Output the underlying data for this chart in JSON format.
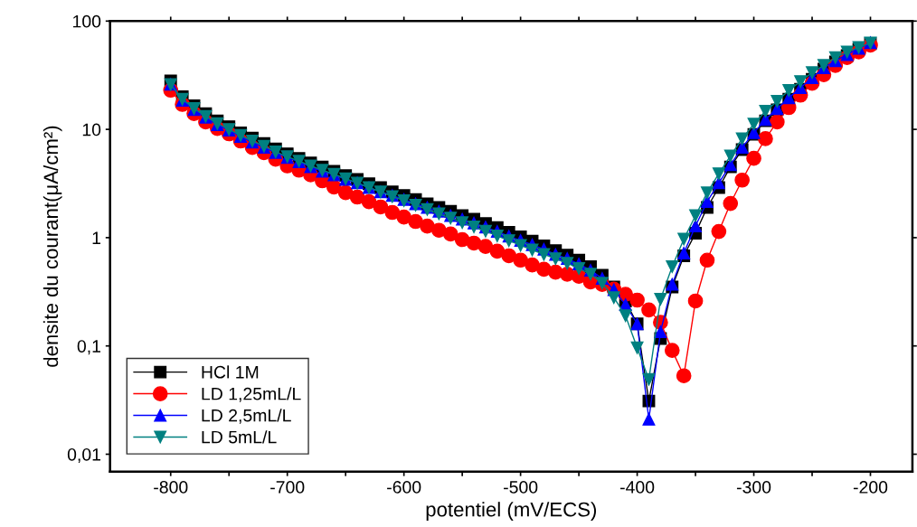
{
  "chart_data": {
    "type": "line",
    "xlabel": "potentiel (mV/ECS)",
    "ylabel": "densite du courant(μA/cm²)",
    "log": "y",
    "grid": false,
    "legend": "bottom left",
    "line_style": "solid",
    "x": [
      -800,
      -790,
      -780,
      -770,
      -760,
      -750,
      -740,
      -730,
      -720,
      -710,
      -700,
      -690,
      -680,
      -670,
      -660,
      -650,
      -640,
      -630,
      -620,
      -610,
      -600,
      -590,
      -580,
      -570,
      -560,
      -550,
      -540,
      -530,
      -520,
      -510,
      -500,
      -490,
      -480,
      -470,
      -460,
      -450,
      -440,
      -430,
      -420,
      -410,
      -400,
      -390,
      -380,
      -370,
      -360,
      -350,
      -340,
      -330,
      -320,
      -310,
      -300,
      -290,
      -280,
      -270,
      -260,
      -250,
      -240,
      -230,
      -220,
      -210,
      -200
    ],
    "xlim": [
      -852,
      -164
    ],
    "ylim": [
      0.0069,
      100
    ],
    "xticks": [
      -800,
      {
        "value": -750,
        "label": null
      },
      -700,
      {
        "value": -650,
        "label": null
      },
      -600,
      {
        "value": -550,
        "label": null
      },
      -500,
      {
        "value": -450,
        "label": null
      },
      -400,
      {
        "value": -350,
        "label": null
      },
      -300,
      {
        "value": -250,
        "label": null
      },
      -200
    ],
    "yticks": [
      {
        "value": 0.01,
        "label": "0,01"
      },
      {
        "value": 0.1,
        "label": "0,1"
      },
      1,
      10,
      100
    ],
    "series": [
      {
        "name": "HCl 1M",
        "color": "#000000",
        "marker": "square",
        "values": [
          28,
          20,
          16.5,
          14,
          12,
          10.6,
          9.3,
          8.3,
          7.4,
          6.6,
          5.95,
          5.4,
          4.9,
          4.5,
          4.1,
          3.75,
          3.45,
          3.15,
          2.9,
          2.65,
          2.45,
          2.25,
          2.05,
          1.9,
          1.75,
          1.6,
          1.48,
          1.35,
          1.24,
          1.12,
          1.02,
          0.93,
          0.84,
          0.76,
          0.69,
          0.62,
          0.54,
          0.45,
          0.35,
          0.26,
          0.16,
          0.031,
          0.117,
          0.35,
          0.68,
          1.1,
          1.9,
          2.9,
          4.5,
          6.5,
          9.0,
          12.0,
          15.2,
          19,
          23.5,
          29,
          36,
          42,
          48,
          55,
          62
        ]
      },
      {
        "name": "LD 1,25mL/L",
        "color": "#ff0000",
        "marker": "circle",
        "values": [
          23,
          17,
          14,
          11.7,
          10.2,
          9.1,
          7.8,
          6.8,
          6.1,
          5.3,
          4.6,
          4.2,
          3.8,
          3.35,
          2.93,
          2.6,
          2.37,
          2.15,
          1.92,
          1.71,
          1.55,
          1.41,
          1.28,
          1.17,
          1.08,
          0.96,
          0.89,
          0.83,
          0.75,
          0.68,
          0.62,
          0.56,
          0.51,
          0.48,
          0.46,
          0.44,
          0.39,
          0.37,
          0.335,
          0.3,
          0.265,
          0.215,
          0.165,
          0.091,
          0.053,
          0.26,
          0.62,
          1.14,
          2.07,
          3.4,
          5.4,
          8.2,
          11.7,
          15.9,
          20.7,
          26.6,
          32,
          39,
          46,
          52,
          60
        ]
      },
      {
        "name": "LD 2,5mL/L",
        "color": "#0000ff",
        "marker": "triangle",
        "values": [
          26,
          18.5,
          15.2,
          12.9,
          11,
          9.8,
          8.6,
          7.6,
          6.8,
          6.1,
          5.5,
          5.0,
          4.5,
          4.1,
          3.8,
          3.45,
          3.2,
          2.9,
          2.65,
          2.45,
          2.25,
          2.05,
          1.9,
          1.75,
          1.6,
          1.48,
          1.36,
          1.25,
          1.14,
          1.03,
          0.94,
          0.86,
          0.78,
          0.7,
          0.64,
          0.57,
          0.5,
          0.42,
          0.33,
          0.24,
          0.16,
          0.021,
          0.135,
          0.37,
          0.72,
          1.28,
          2.15,
          3.2,
          4.7,
          6.8,
          9.3,
          12.3,
          15.5,
          19.5,
          24.2,
          30,
          37,
          43,
          49,
          56,
          63
        ]
      },
      {
        "name": "LD 5mL/L",
        "color": "#008080",
        "marker": "triangle_down",
        "values": [
          26,
          19,
          15.6,
          13.2,
          11.3,
          10,
          8.8,
          7.8,
          7.0,
          6.2,
          5.6,
          5.1,
          4.6,
          4.2,
          3.85,
          3.5,
          3.2,
          2.9,
          2.65,
          2.4,
          2.2,
          2.0,
          1.82,
          1.66,
          1.52,
          1.38,
          1.26,
          1.15,
          1.04,
          0.94,
          0.85,
          0.77,
          0.7,
          0.64,
          0.58,
          0.52,
          0.46,
          0.38,
          0.28,
          0.19,
          0.096,
          0.049,
          0.27,
          0.54,
          0.97,
          1.6,
          2.6,
          3.9,
          5.7,
          8.2,
          11.2,
          14.7,
          18.2,
          22.9,
          27.7,
          33.5,
          39,
          46,
          52,
          57,
          63
        ]
      }
    ]
  }
}
